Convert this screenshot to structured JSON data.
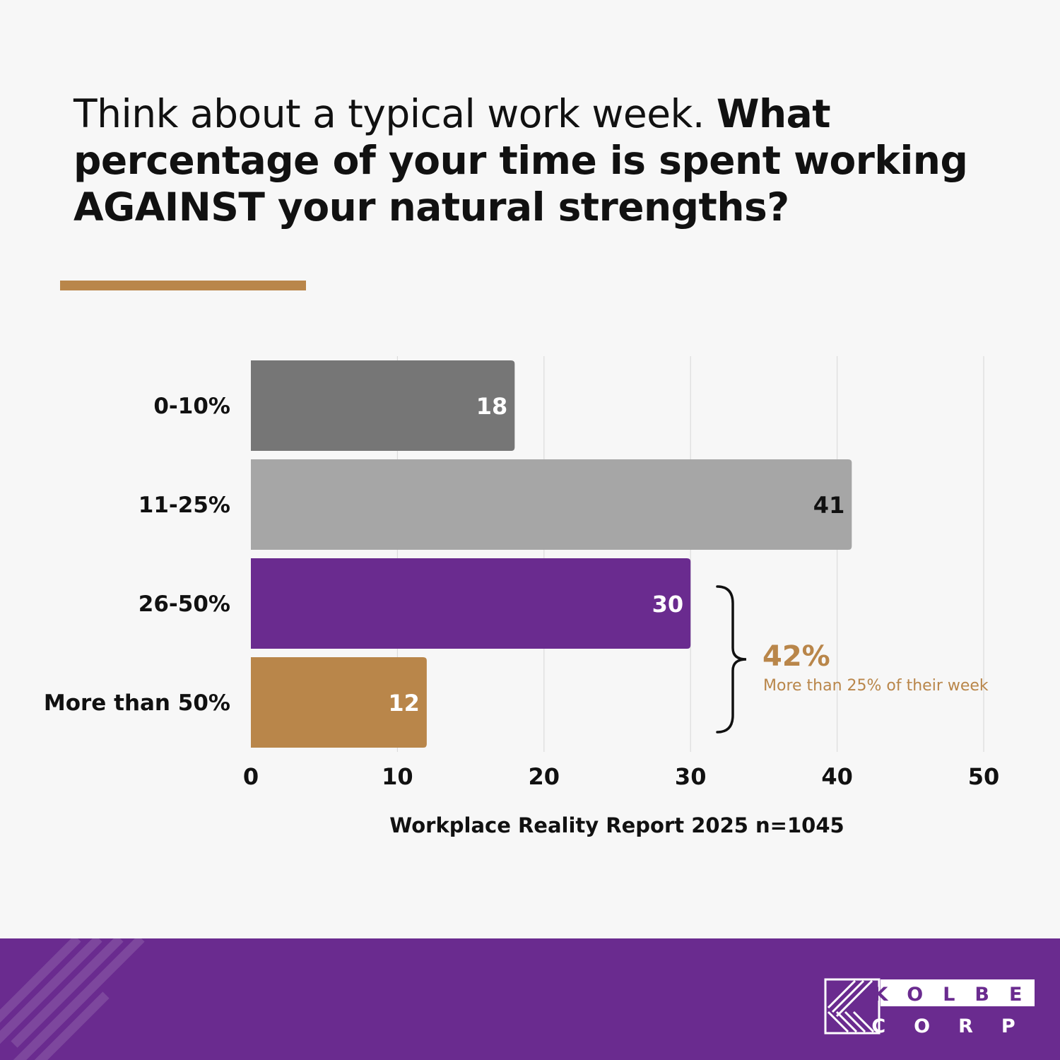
{
  "heading": {
    "light": "Think about a typical work week. ",
    "bold": "What percentage of your time is spent working AGAINST your natural strengths?"
  },
  "colors": {
    "background": "#f7f7f7",
    "accent_gold": "#b9864a",
    "purple": "#6a2b8f",
    "dark_gray": "#767676",
    "light_gray": "#a6a6a6",
    "text": "#111111"
  },
  "chart_data": {
    "type": "bar",
    "orientation": "horizontal",
    "categories": [
      "0-10%",
      "11-25%",
      "26-50%",
      "More than 50%"
    ],
    "values": [
      18,
      41,
      30,
      12
    ],
    "bar_colors": [
      "#767676",
      "#a6a6a6",
      "#6a2b8f",
      "#b9864a"
    ],
    "label_colors": [
      "#ffffff",
      "#111111",
      "#ffffff",
      "#ffffff"
    ],
    "xlim": [
      0,
      50
    ],
    "xticks": [
      0,
      10,
      20,
      30,
      40,
      50
    ],
    "grid": true,
    "source_note": "Workplace Reality Report 2025 n=1045",
    "annotation": {
      "value": "42%",
      "text": "More than 25% of their week",
      "bracket_categories": [
        "26-50%",
        "More than 50%"
      ]
    }
  },
  "footer": {
    "logo_line1": "KOLBE",
    "logo_line2": "CORP"
  }
}
